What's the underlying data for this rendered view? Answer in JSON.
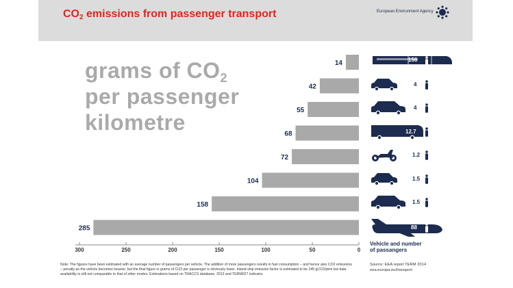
{
  "header": {
    "title_prefix": "CO",
    "title_sub": "2",
    "title_suffix": " emissions from passenger transport",
    "agency": "European Environment Agency"
  },
  "big_label": {
    "line1_prefix": "grams of CO",
    "line1_sub": "2",
    "line2": "per passenger",
    "line3": "kilometre"
  },
  "chart_data": {
    "type": "bar",
    "orientation": "horizontal",
    "direction": "right-to-left",
    "title": "CO2 emissions from passenger transport",
    "xlabel": "grams of CO2 per passenger kilometre",
    "xlim": [
      0,
      300
    ],
    "xticks": [
      300,
      250,
      200,
      150,
      100,
      50,
      0
    ],
    "categories": [
      "Train",
      "Small car",
      "Large car",
      "Bus",
      "Motorcycle",
      "Small car",
      "Large car",
      "Aeroplane"
    ],
    "values": [
      14,
      42,
      55,
      68,
      72,
      104,
      158,
      285
    ],
    "value_labels": [
      "14",
      "42",
      "55",
      "68",
      "72",
      "104",
      "158",
      "285"
    ],
    "passengers": [
      "156",
      "4",
      "4",
      "12.7",
      "1.2",
      "1.5",
      "1.5",
      "88"
    ],
    "bar_color": "#a9a9a9",
    "label_color": "#1c2b4f"
  },
  "vehicles": [
    {
      "icon": "train-icon",
      "passengers": "156"
    },
    {
      "icon": "small-car-icon",
      "passengers": "4"
    },
    {
      "icon": "large-car-icon",
      "passengers": "4"
    },
    {
      "icon": "bus-icon",
      "passengers": "12.7"
    },
    {
      "icon": "motorcycle-icon",
      "passengers": "1.2"
    },
    {
      "icon": "small-car-icon",
      "passengers": "1.5"
    },
    {
      "icon": "large-car-icon",
      "passengers": "1.5"
    },
    {
      "icon": "plane-icon",
      "passengers": "88"
    }
  ],
  "legend": {
    "line1": "Vehicle and number",
    "line2": "of passangers"
  },
  "note": "Note: The figures have been estimated with an average number of passengers per vehicle. The addition of more passengers results in fuel consumption – and hence also CO2 emissions – penalty as the vehicle becomes heavier, but the final figure in grams of CO2 per passenger is obviously lower. Inland ship emission factor is estimated to be 245 gCO2/pkm but data availability is still not comparable to that of other modes. Estimations based on TRACCS database, 2013 and TERM027 indicator.",
  "source": {
    "line1": "Source: EEA report TERM 2014",
    "line2": "eea.europa.eu/transport"
  },
  "colors": {
    "title_red": "#e2241b",
    "navy": "#1c2b4f",
    "bar_gray": "#a9a9a9",
    "header_gray": "#dcdcdc"
  }
}
